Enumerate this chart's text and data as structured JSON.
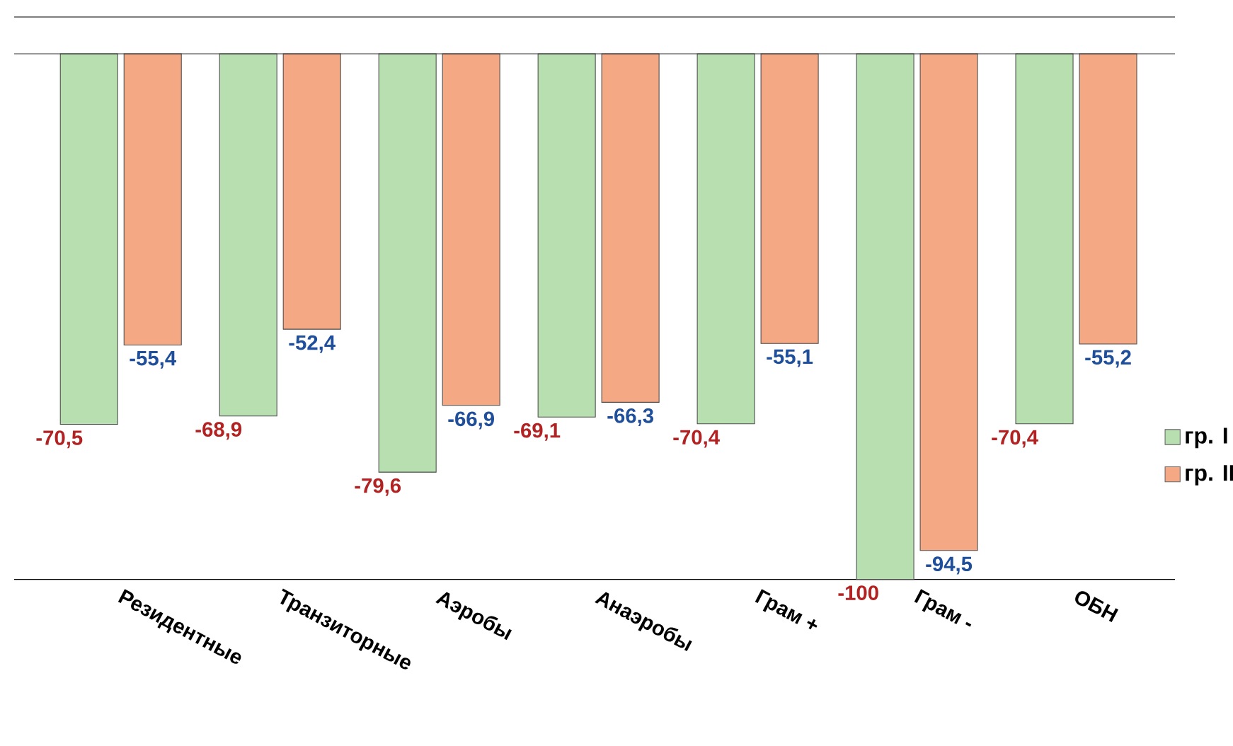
{
  "chart_data": {
    "type": "bar",
    "categories": [
      "Резидентные",
      "Транзиторные",
      "Аэробы",
      "Анаэробы",
      "Грам +",
      "Грам -",
      "ОБН"
    ],
    "series": [
      {
        "name": "гр. I",
        "color": "#b8dfb0",
        "values": [
          -70.5,
          -68.9,
          -79.6,
          -69.1,
          -70.4,
          -100,
          -70.4
        ],
        "value_labels": [
          "-70,5",
          "-68,9",
          "-79,6",
          "-69,1",
          "-70,4",
          "-100",
          "-70,4"
        ]
      },
      {
        "name": "гр. II",
        "color": "#f4a884",
        "values": [
          -55.4,
          -52.4,
          -66.9,
          -66.3,
          -55.1,
          -94.5,
          -55.2
        ],
        "value_labels": [
          "-55,4",
          "-52,4",
          "-66,9",
          "-66,3",
          "-55,1",
          "-94,5",
          "-55,2"
        ]
      }
    ],
    "ylim": [
      -100,
      7
    ],
    "legend": "right"
  }
}
